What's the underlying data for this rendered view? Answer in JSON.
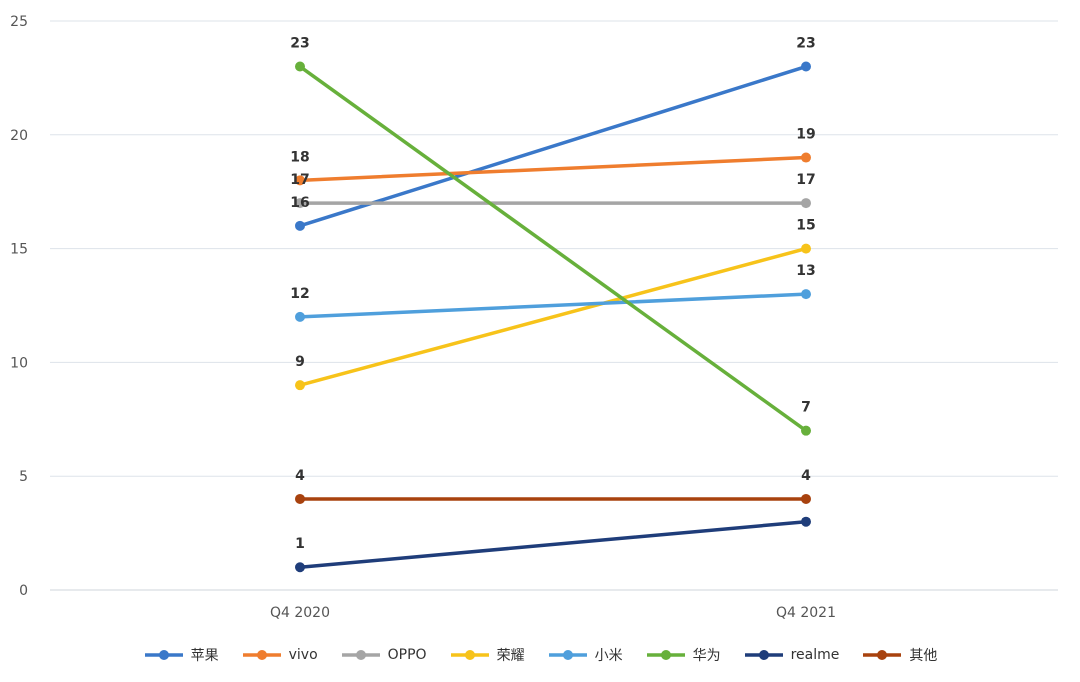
{
  "chart_data": {
    "type": "line",
    "categories": [
      "Q4 2020",
      "Q4 2021"
    ],
    "ylim": [
      0,
      25
    ],
    "yticks": [
      0,
      5,
      10,
      15,
      20,
      25
    ],
    "grid": true,
    "legend_position": "bottom",
    "series": [
      {
        "name": "苹果",
        "values": [
          16,
          23
        ],
        "labels": [
          "16",
          "23"
        ],
        "color": "#3a78c9"
      },
      {
        "name": "vivo",
        "values": [
          18,
          19
        ],
        "labels": [
          "18",
          "19"
        ],
        "color": "#ef7d2e"
      },
      {
        "name": "OPPO",
        "values": [
          17,
          17
        ],
        "labels": [
          "17",
          "17"
        ],
        "color": "#a5a5a5"
      },
      {
        "name": "荣耀",
        "values": [
          9,
          15
        ],
        "labels": [
          "9",
          "15"
        ],
        "color": "#f7c31a"
      },
      {
        "name": "小米",
        "values": [
          12,
          13
        ],
        "labels": [
          "12",
          "13"
        ],
        "color": "#4f9fdc"
      },
      {
        "name": "华为",
        "values": [
          23,
          7
        ],
        "labels": [
          "23",
          "7"
        ],
        "color": "#67b03b"
      },
      {
        "name": "realme",
        "values": [
          1,
          3
        ],
        "labels": [
          "1",
          ""
        ],
        "color": "#1f3d7a"
      },
      {
        "name": "其他",
        "values": [
          4,
          4
        ],
        "labels": [
          "4",
          "4"
        ],
        "color": "#a8420e"
      }
    ]
  }
}
